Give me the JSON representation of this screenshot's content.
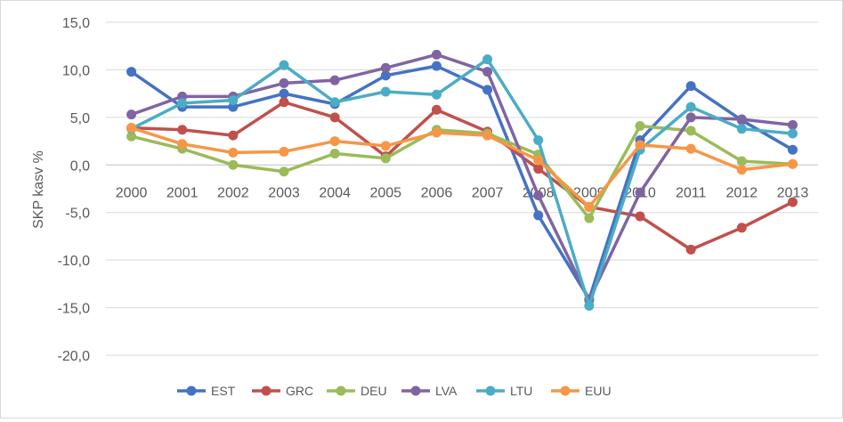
{
  "chart_data": {
    "type": "line",
    "title": "",
    "xlabel": "",
    "ylabel": "SKP kasv %",
    "ylim": [
      -20,
      15
    ],
    "y_ticks": [
      "-20,0",
      "-15,0",
      "-10,0",
      "-5,0",
      "0,0",
      "5,0",
      "10,0",
      "15,0"
    ],
    "y_tick_values": [
      -20,
      -15,
      -10,
      -5,
      0,
      5,
      10,
      15
    ],
    "categories": [
      "2000",
      "2001",
      "2002",
      "2003",
      "2004",
      "2005",
      "2006",
      "2007",
      "2008",
      "2009",
      "2010",
      "2011",
      "2012",
      "2013"
    ],
    "grid": true,
    "legend_position": "bottom",
    "series": [
      {
        "name": "EST",
        "color": "#4472C4",
        "values": [
          9.8,
          6.1,
          6.1,
          7.5,
          6.4,
          9.4,
          10.4,
          7.9,
          -5.3,
          -14.1,
          2.6,
          8.3,
          4.7,
          1.6
        ]
      },
      {
        "name": "GRC",
        "color": "#C0504D",
        "values": [
          3.9,
          3.7,
          3.1,
          6.6,
          5.0,
          0.9,
          5.8,
          3.5,
          -0.4,
          -4.4,
          -5.4,
          -8.9,
          -6.6,
          -3.9
        ]
      },
      {
        "name": "DEU",
        "color": "#9BBB59",
        "values": [
          3.0,
          1.7,
          0.0,
          -0.7,
          1.2,
          0.7,
          3.7,
          3.3,
          1.1,
          -5.6,
          4.1,
          3.6,
          0.4,
          0.1
        ]
      },
      {
        "name": "LVA",
        "color": "#8064A2",
        "values": [
          5.3,
          7.2,
          7.2,
          8.6,
          8.9,
          10.2,
          11.6,
          9.8,
          -3.2,
          -14.2,
          -2.9,
          5.0,
          4.8,
          4.2
        ]
      },
      {
        "name": "LTU",
        "color": "#4BACC6",
        "values": [
          3.8,
          6.5,
          6.8,
          10.5,
          6.6,
          7.7,
          7.4,
          11.1,
          2.6,
          -14.8,
          1.6,
          6.1,
          3.8,
          3.3
        ]
      },
      {
        "name": "EUU",
        "color": "#F79646",
        "values": [
          3.9,
          2.2,
          1.3,
          1.4,
          2.5,
          2.0,
          3.4,
          3.1,
          0.5,
          -4.4,
          2.1,
          1.7,
          -0.5,
          0.1
        ]
      }
    ]
  }
}
